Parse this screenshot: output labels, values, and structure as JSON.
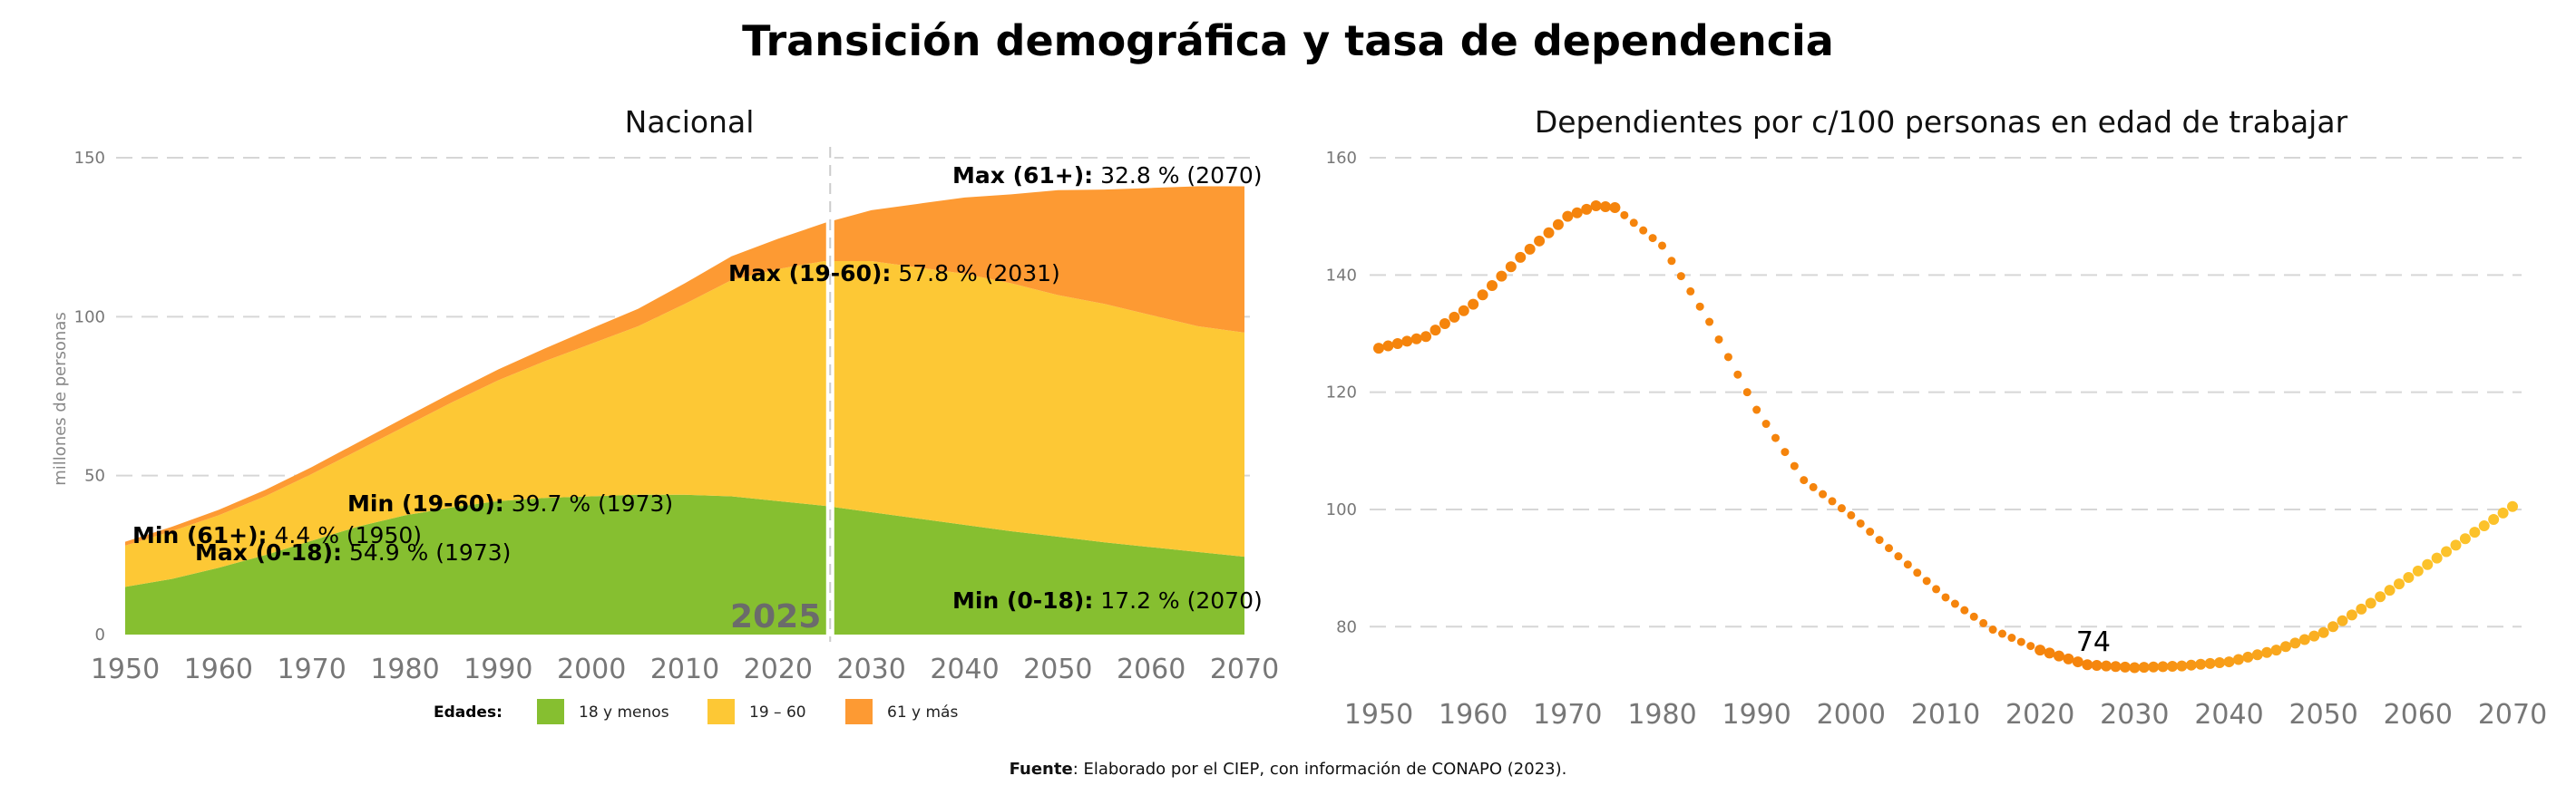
{
  "title": "Transición demográfica y tasa de dependencia",
  "footer": {
    "label": "Fuente",
    "text": ": Elaborado por el CIEP, con información de CONAPO (2023)."
  },
  "colors": {
    "green": "#86bf30",
    "yellow": "#fdc835",
    "orange": "#fd9a33",
    "dots_dark": "#f5840c",
    "dots_light": "#fcc22a"
  },
  "chart_data": [
    {
      "type": "area",
      "title": "Nacional",
      "ylabel": "millones de personas",
      "xlim": [
        1950,
        2070
      ],
      "ylim": [
        0,
        150
      ],
      "xticks": [
        1950,
        1960,
        1970,
        1980,
        1990,
        2000,
        2010,
        2020,
        2030,
        2040,
        2050,
        2060,
        2070
      ],
      "yticks": [
        0,
        50,
        100,
        150
      ],
      "x": [
        1950,
        1955,
        1960,
        1965,
        1970,
        1975,
        1980,
        1985,
        1990,
        1995,
        2000,
        2005,
        2010,
        2015,
        2020,
        2025,
        2030,
        2035,
        2040,
        2045,
        2050,
        2055,
        2060,
        2065,
        2070
      ],
      "series": [
        {
          "name": "18 y menos",
          "values": [
            15,
            17.5,
            21,
            25,
            29.5,
            34,
            37.5,
            40,
            42,
            43,
            43.5,
            44,
            44,
            43.5,
            42,
            40.5,
            38.5,
            36.5,
            34.5,
            32.5,
            30.8,
            29,
            27.5,
            26,
            24.5
          ]
        },
        {
          "name": "19 – 60",
          "values": [
            13,
            15,
            16.5,
            18.5,
            21,
            24,
            28,
            33,
            38,
            43,
            48,
            53,
            60,
            68,
            73,
            77,
            79,
            79,
            79,
            78,
            76,
            75,
            73,
            71,
            70.5
          ]
        },
        {
          "name": "61 y más",
          "values": [
            1.2,
            1.4,
            1.7,
            2,
            2.2,
            2.5,
            2.8,
            3,
            3.4,
            4,
            4.8,
            5.5,
            6.5,
            7.5,
            9.5,
            12,
            16,
            20,
            24,
            28,
            33,
            36,
            40,
            44,
            46
          ]
        }
      ],
      "vline": {
        "x": 2025,
        "label": "2025"
      },
      "legend": {
        "heading": "Edades:",
        "items": [
          "18 y menos",
          "19 – 60",
          "61 y más"
        ]
      },
      "annotations": [
        {
          "bold": "Max (61+):",
          "text": " 32.8 % (2070)"
        },
        {
          "bold": "Max (19-60):",
          "text": " 57.8 % (2031)"
        },
        {
          "bold": "Min (19-60):",
          "text": " 39.7 % (1973)"
        },
        {
          "bold": "Min (61+):",
          "text": " 4.4 % (1950)"
        },
        {
          "bold": "Max (0-18):",
          "text": " 54.9 % (1973)"
        },
        {
          "bold": "Min (0-18):",
          "text": " 17.2 % (2070)"
        }
      ]
    },
    {
      "type": "scatter",
      "title": "Dependientes por c/100 personas en edad de trabajar",
      "xlim": [
        1950,
        2070
      ],
      "ylim": [
        72,
        160
      ],
      "xticks": [
        1950,
        1960,
        1970,
        1980,
        1990,
        2000,
        2010,
        2020,
        2030,
        2040,
        2050,
        2060,
        2070
      ],
      "yticks": [
        80,
        100,
        120,
        140,
        160
      ],
      "x": [
        1950,
        1955,
        1960,
        1965,
        1970,
        1973,
        1975,
        1980,
        1985,
        1990,
        1995,
        2000,
        2005,
        2010,
        2015,
        2020,
        2025,
        2030,
        2035,
        2040,
        2045,
        2050,
        2055,
        2060,
        2065,
        2070
      ],
      "values": [
        127.5,
        129.5,
        135,
        143,
        150,
        151.8,
        151.5,
        145,
        132,
        117,
        105,
        99,
        92,
        85,
        79.5,
        76,
        73.5,
        73,
        73.3,
        74,
        76,
        79,
        84,
        89.5,
        95,
        100.5
      ],
      "point_label": {
        "x": 2024,
        "text": "74"
      }
    }
  ]
}
